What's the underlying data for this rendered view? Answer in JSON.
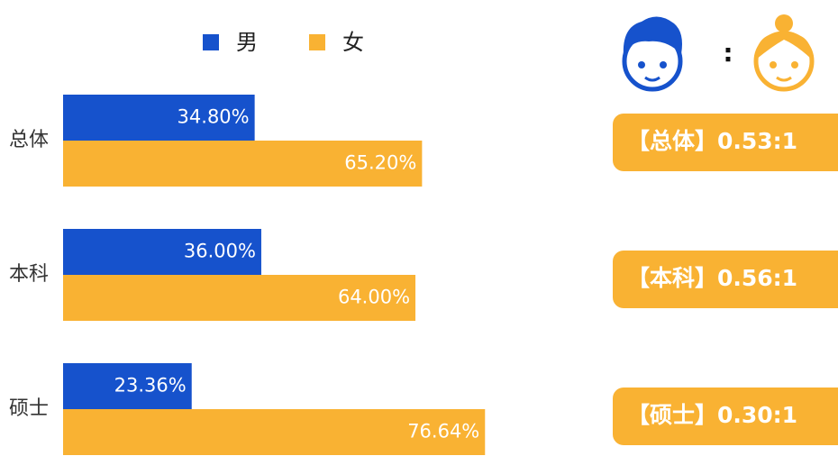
{
  "chart_data": {
    "type": "bar",
    "orientation": "horizontal",
    "categories": [
      "总体",
      "本科",
      "硕士"
    ],
    "series": [
      {
        "name": "男",
        "color": "#1652cc",
        "values": [
          34.8,
          36,
          23.36
        ],
        "value_labels": [
          "34.80%",
          "36.00%",
          "23.36%"
        ]
      },
      {
        "name": "女",
        "color": "#f9b233",
        "values": [
          65.2,
          64,
          76.64
        ],
        "value_labels": [
          "65.20%",
          "64.00%",
          "76.64%"
        ]
      }
    ],
    "legend": "top",
    "ratio_separator": ":",
    "ratios": [
      "【总体】0.53:1",
      "【本科】0.56:1",
      "【硕士】0.30:1"
    ]
  }
}
